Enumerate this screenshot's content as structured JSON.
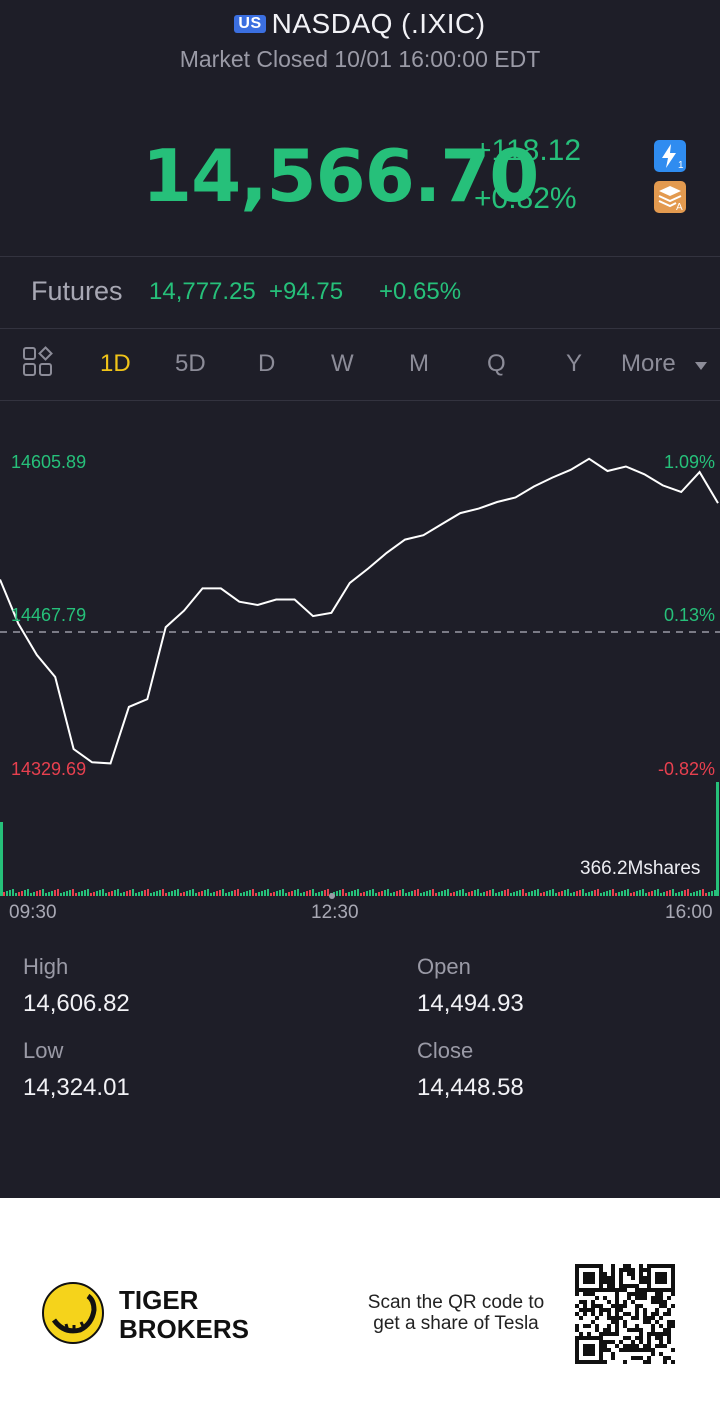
{
  "header": {
    "market_badge": "US",
    "title": "NASDAQ (.IXIC)",
    "status": "Market Closed 10/01 16:00:00 EDT",
    "price": "14,566.70",
    "change_abs": "+118.12",
    "change_pct": "+0.82%",
    "icons": [
      "flash-quote-icon",
      "layers-icon"
    ]
  },
  "futures": {
    "label": "Futures",
    "price": "14,777.25",
    "change_abs": "+94.75",
    "change_pct": "+0.65%"
  },
  "tabs": {
    "layout_icon": "grid-layout-icon",
    "items": [
      "1D",
      "5D",
      "D",
      "W",
      "M",
      "Q",
      "Y"
    ],
    "active": "1D",
    "more_label": "More"
  },
  "chart": {
    "y_labels_left": [
      "14605.89",
      "14467.79",
      "14329.69"
    ],
    "y_labels_right": [
      "1.09%",
      "0.13%",
      "-0.82%"
    ],
    "volume_label": "366.2Mshares",
    "x_labels": [
      "09:30",
      "12:30",
      "16:00"
    ],
    "colors": {
      "up": "#26c07a",
      "down": "#e8404f",
      "line": "#ffffff"
    }
  },
  "chart_data": {
    "type": "line",
    "title": "",
    "xlabel": "",
    "ylabel": "",
    "x": [
      "09:30",
      "09:40",
      "09:50",
      "10:00",
      "10:10",
      "10:20",
      "10:30",
      "10:40",
      "10:50",
      "11:00",
      "11:10",
      "11:20",
      "11:30",
      "11:40",
      "11:50",
      "12:00",
      "12:10",
      "12:20",
      "12:30",
      "12:40",
      "12:50",
      "13:00",
      "13:10",
      "13:20",
      "13:30",
      "13:40",
      "13:50",
      "14:00",
      "14:10",
      "14:20",
      "14:30",
      "14:40",
      "14:50",
      "15:00",
      "15:10",
      "15:20",
      "15:30",
      "15:40",
      "15:50",
      "16:00"
    ],
    "values": [
      14498,
      14458,
      14430,
      14410,
      14345,
      14333,
      14332,
      14383,
      14390,
      14455,
      14470,
      14490,
      14490,
      14478,
      14475,
      14480,
      14480,
      14465,
      14468,
      14495,
      14508,
      14522,
      14534,
      14538,
      14548,
      14558,
      14562,
      14568,
      14572,
      14582,
      14590,
      14597,
      14607,
      14596,
      14600,
      14593,
      14583,
      14577,
      14595,
      14567
    ],
    "prev_close": 14448.58,
    "ylim": [
      14329.69,
      14605.89
    ],
    "y_ticks": [
      14605.89,
      14467.79,
      14329.69
    ],
    "pct_ticks": [
      "1.09%",
      "0.13%",
      "-0.82%"
    ],
    "volume_total": "366.2Mshares"
  },
  "stats": {
    "high_label": "High",
    "high": "14,606.82",
    "open_label": "Open",
    "open": "14,494.93",
    "low_label": "Low",
    "low": "14,324.01",
    "close_label": "Close",
    "close": "14,448.58"
  },
  "footer": {
    "brand_line1": "TIGER",
    "brand_line2": "BROKERS",
    "scan_line1": "Scan the QR code to",
    "scan_line2": "get a share of Tesla",
    "logo_icon": "tiger-logo-icon",
    "qr_icon": "qr-code-icon"
  }
}
